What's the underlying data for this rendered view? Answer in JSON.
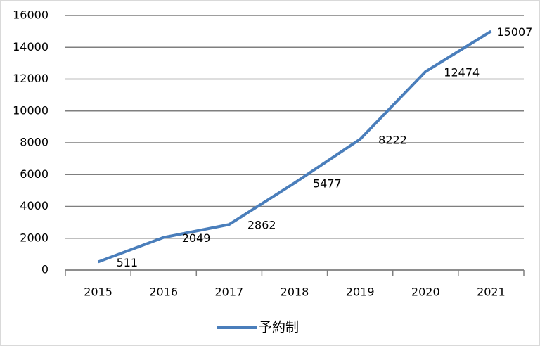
{
  "chart_data": {
    "type": "line",
    "categories": [
      "2015",
      "2016",
      "2017",
      "2018",
      "2019",
      "2020",
      "2021"
    ],
    "series": [
      {
        "name": "予約制",
        "color": "#4a7ebb",
        "values": [
          511,
          2049,
          2862,
          5477,
          8222,
          12474,
          15007
        ]
      }
    ],
    "ylim": [
      0,
      16000
    ],
    "yticks": [
      0,
      2000,
      4000,
      6000,
      8000,
      10000,
      12000,
      14000,
      16000
    ],
    "grid": true,
    "data_labels": true,
    "legend": "bottom"
  }
}
